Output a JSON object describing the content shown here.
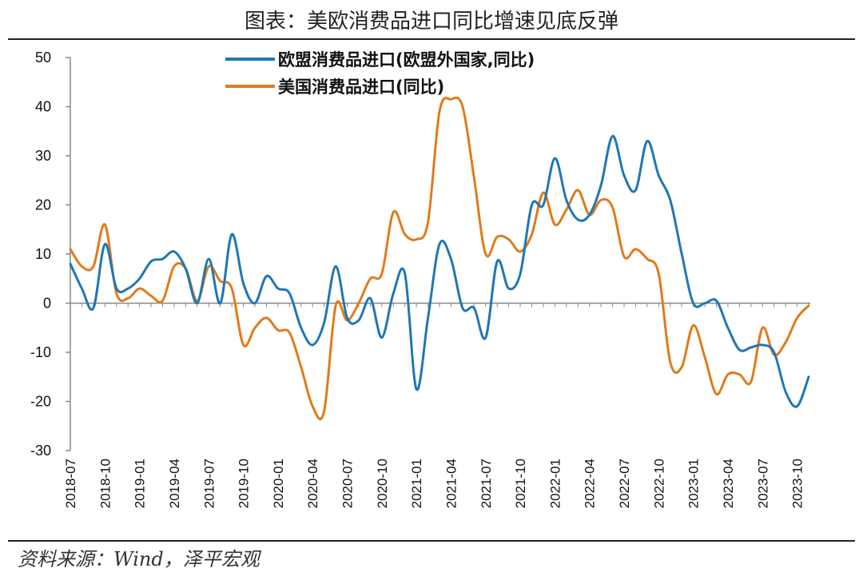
{
  "chart_data": {
    "type": "line",
    "title": "图表：美欧消费品进口同比增速见底反弹",
    "source": "资料来源：Wind，泽平宏观",
    "ylim": [
      -30,
      50
    ],
    "yticks": [
      50,
      40,
      30,
      20,
      10,
      0,
      -10,
      -20,
      -30
    ],
    "x_labels": [
      "2018-07",
      "2018-10",
      "2019-01",
      "2019-04",
      "2019-07",
      "2019-10",
      "2020-01",
      "2020-04",
      "2020-07",
      "2020-10",
      "2021-01",
      "2021-04",
      "2021-07",
      "2021-10",
      "2022-01",
      "2022-04",
      "2022-07",
      "2022-10",
      "2023-01",
      "2023-04",
      "2023-07",
      "2023-10"
    ],
    "series": [
      {
        "name": "欧盟消费品进口(欧盟外国家,同比)",
        "color": "#1f77b4",
        "values": [
          8,
          3,
          -1,
          12,
          3,
          3,
          5,
          8.5,
          9,
          10.5,
          7,
          0,
          9,
          0,
          14,
          4,
          0,
          5.5,
          3,
          2,
          -5,
          -8.5,
          -4,
          7.5,
          -3,
          -3.5,
          1,
          -7,
          2,
          6,
          -17.5,
          -3,
          12,
          9,
          -1,
          -1,
          -7,
          8.5,
          3,
          6,
          20,
          20,
          29.5,
          21,
          17,
          18,
          24,
          34,
          26,
          23,
          33,
          26,
          21,
          10,
          0,
          0,
          0.5,
          -5,
          -9.5,
          -9,
          -8.5,
          -10,
          -18,
          -21,
          -15
        ]
      },
      {
        "name": "美国消费品进口(同比)",
        "color": "#e07b1a",
        "values": [
          11,
          7.5,
          7.5,
          16,
          2,
          1,
          3,
          1.5,
          0.5,
          7.5,
          7,
          0.5,
          7.5,
          4.5,
          3,
          -8.5,
          -5,
          -3,
          -5.5,
          -6,
          -13,
          -21,
          -22,
          -0.5,
          -3.5,
          0,
          5,
          6,
          18.5,
          14,
          13,
          16.5,
          39,
          41.5,
          40,
          25.5,
          10,
          13.5,
          13,
          10.5,
          14,
          22.5,
          16,
          19,
          23,
          18,
          21,
          19.5,
          9.5,
          11,
          9,
          6,
          -12,
          -13,
          -4.5,
          -11,
          -18.5,
          -14.5,
          -14.5,
          -16,
          -5,
          -10.5,
          -8,
          -3,
          -0.5
        ]
      }
    ]
  }
}
